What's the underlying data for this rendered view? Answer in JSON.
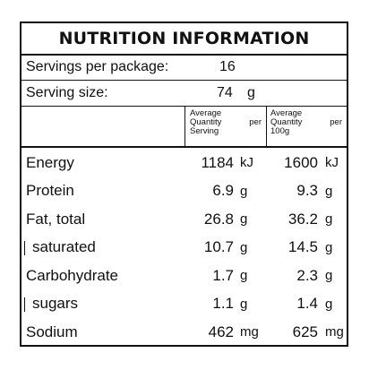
{
  "title": "NUTRITION INFORMATION",
  "servings_per_package": {
    "label": "Servings per package:",
    "value": "16"
  },
  "serving_size": {
    "label": "Serving size:",
    "value": "74",
    "unit": "g"
  },
  "columns": {
    "per_serving": {
      "line1": "Average",
      "line2a": "Quantity",
      "line2b": "per",
      "line3": "Serving"
    },
    "per_100g": {
      "line1": "Average",
      "line2a": "Quantity",
      "line2b": "per",
      "line3": "100g"
    }
  },
  "rows": [
    {
      "name": "Energy",
      "serving": "1184",
      "serving_unit": "kJ",
      "per100": "1600",
      "per100_unit": "kJ",
      "sub": false
    },
    {
      "name": "Protein",
      "serving": "6.9",
      "serving_unit": "g",
      "per100": "9.3",
      "per100_unit": "g",
      "sub": false
    },
    {
      "name": "Fat, total",
      "serving": "26.8",
      "serving_unit": "g",
      "per100": "36.2",
      "per100_unit": "g",
      "sub": false
    },
    {
      "name": "saturated",
      "serving": "10.7",
      "serving_unit": "g",
      "per100": "14.5",
      "per100_unit": "g",
      "sub": true
    },
    {
      "name": "Carbohydrate",
      "serving": "1.7",
      "serving_unit": "g",
      "per100": "2.3",
      "per100_unit": "g",
      "sub": false
    },
    {
      "name": "sugars",
      "serving": "1.1",
      "serving_unit": "g",
      "per100": "1.4",
      "per100_unit": "g",
      "sub": true
    },
    {
      "name": "Sodium",
      "serving": "462",
      "serving_unit": "mg",
      "per100": "625",
      "per100_unit": "mg",
      "sub": false
    }
  ]
}
